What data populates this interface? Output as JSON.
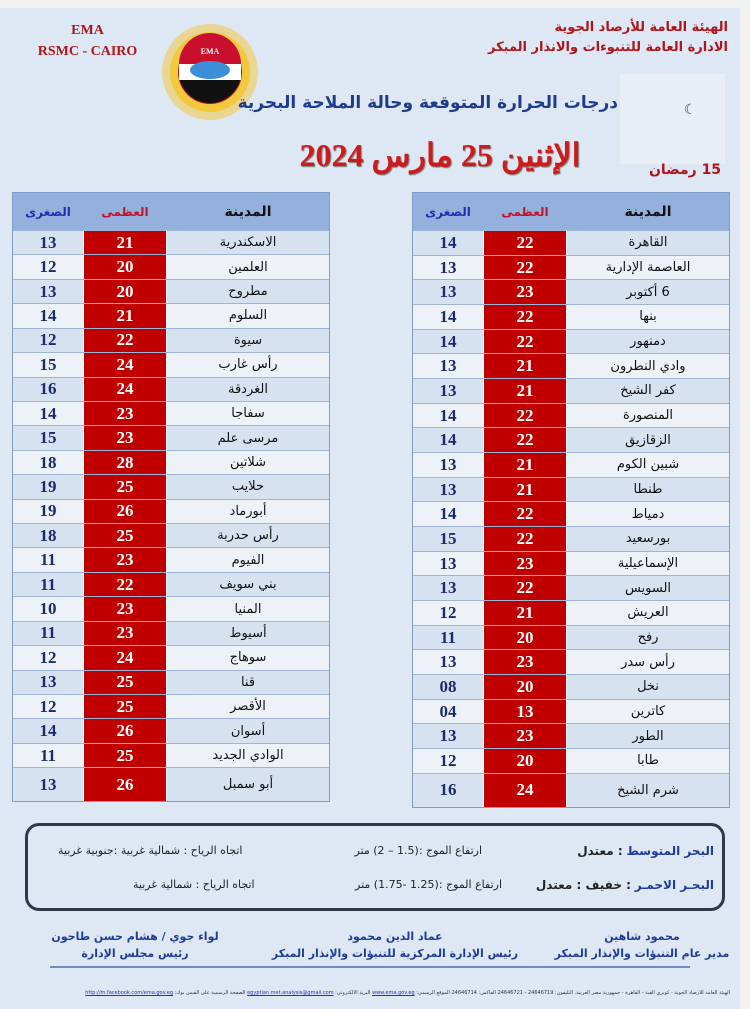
{
  "header": {
    "ema_lines": [
      "EMA",
      "RSMC - CAIRO"
    ],
    "org_lines": [
      "الهيئة العامة للأرصاد الجوية",
      "الادارة العامة للتنبوءات والانذار المبكر"
    ],
    "title": "درجات الحرارة المتوقعة وحالة الملاحة البحرية",
    "date": "الإثنين 25 مارس 2024",
    "ramadan_day": "15 رمضان",
    "logo_text": "EMA",
    "colors": {
      "accent_red": "#c00000",
      "title_blue": "#1f3b8c",
      "background": "#dde8f4"
    }
  },
  "table_headers": {
    "city": "المدينة",
    "max": "العظمى",
    "min": "الصغرى"
  },
  "right_table": [
    {
      "city": "القاهرة",
      "max": "22",
      "min": "14"
    },
    {
      "city": "العاصمة الإدارية",
      "max": "22",
      "min": "13"
    },
    {
      "city": "6 أكتوبر",
      "max": "23",
      "min": "13"
    },
    {
      "city": "بنها",
      "max": "22",
      "min": "14"
    },
    {
      "city": "دمنهور",
      "max": "22",
      "min": "14"
    },
    {
      "city": "وادي النطرون",
      "max": "21",
      "min": "13"
    },
    {
      "city": "كفر الشيخ",
      "max": "21",
      "min": "13"
    },
    {
      "city": "المنصورة",
      "max": "22",
      "min": "14"
    },
    {
      "city": "الزقازيق",
      "max": "22",
      "min": "14"
    },
    {
      "city": "شبين الكوم",
      "max": "21",
      "min": "13"
    },
    {
      "city": "طنطا",
      "max": "21",
      "min": "13"
    },
    {
      "city": "دمياط",
      "max": "22",
      "min": "14"
    },
    {
      "city": "بورسعيد",
      "max": "22",
      "min": "15"
    },
    {
      "city": "الإسماعيلية",
      "max": "23",
      "min": "13"
    },
    {
      "city": "السويس",
      "max": "22",
      "min": "13"
    },
    {
      "city": "العريش",
      "max": "21",
      "min": "12"
    },
    {
      "city": "رفح",
      "max": "20",
      "min": "11"
    },
    {
      "city": "رأس سدر",
      "max": "23",
      "min": "13"
    },
    {
      "city": "نخل",
      "max": "20",
      "min": "08"
    },
    {
      "city": "كاترين",
      "max": "13",
      "min": "04"
    },
    {
      "city": "الطور",
      "max": "23",
      "min": "13"
    },
    {
      "city": "طابا",
      "max": "20",
      "min": "12"
    },
    {
      "city": "شرم الشيخ",
      "max": "24",
      "min": "16"
    }
  ],
  "left_table": [
    {
      "city": "الاسكندرية",
      "max": "21",
      "min": "13"
    },
    {
      "city": "العلمين",
      "max": "20",
      "min": "12"
    },
    {
      "city": "مطروح",
      "max": "20",
      "min": "13"
    },
    {
      "city": "السلوم",
      "max": "21",
      "min": "14"
    },
    {
      "city": "سيوة",
      "max": "22",
      "min": "12"
    },
    {
      "city": "رأس غارب",
      "max": "24",
      "min": "15"
    },
    {
      "city": "الغردقة",
      "max": "24",
      "min": "16"
    },
    {
      "city": "سفاجا",
      "max": "23",
      "min": "14"
    },
    {
      "city": "مرسى علم",
      "max": "23",
      "min": "15"
    },
    {
      "city": "شلاتين",
      "max": "28",
      "min": "18"
    },
    {
      "city": "حلايب",
      "max": "25",
      "min": "19"
    },
    {
      "city": "أبورماد",
      "max": "26",
      "min": "19"
    },
    {
      "city": "رأس حدربة",
      "max": "25",
      "min": "18"
    },
    {
      "city": "الفيوم",
      "max": "23",
      "min": "11"
    },
    {
      "city": "بني سويف",
      "max": "22",
      "min": "11"
    },
    {
      "city": "المنيا",
      "max": "23",
      "min": "10"
    },
    {
      "city": "أسيوط",
      "max": "23",
      "min": "11"
    },
    {
      "city": "سوهاج",
      "max": "24",
      "min": "12"
    },
    {
      "city": "قنا",
      "max": "25",
      "min": "13"
    },
    {
      "city": "الأقصر",
      "max": "25",
      "min": "12"
    },
    {
      "city": "أسوان",
      "max": "26",
      "min": "14"
    },
    {
      "city": "الوادي الجديد",
      "max": "25",
      "min": "11"
    },
    {
      "city": "أبو سمبل",
      "max": "26",
      "min": "13"
    }
  ],
  "sea": {
    "mediterranean": {
      "name": "البحر المتوسط",
      "state": ": معتدل",
      "waves": "ارتفاع الموج :(1.5 – 2) متر",
      "wind": "اتجاه الرياح : شمالية غربية :جنوبية غربية"
    },
    "red_sea": {
      "name": "البحـر الاحمـر",
      "state": ":  خفيف : معتدل",
      "waves": "ارتفاع الموج :(1.25 -1.75) متر",
      "wind": "اتجاه الرياح : شمالية غربية"
    }
  },
  "signatures": [
    {
      "name": "محمود شاهين",
      "title": "مدير عام التنبؤات والإنذار المبكر"
    },
    {
      "name": "عماد الدين محمود",
      "title": "رئيس الإدارة المركزية للتنبؤات والإنذار المبكر"
    },
    {
      "name": "لواء جوي / هشام حسن طاحون",
      "title": "رئيس مجلس الإدارة"
    }
  ],
  "footer": {
    "text": "الهيئة العامة للأرصاد الجوية - كوبري القبة - القاهرة - جمهورية مصر العربية. التليفون: 24646719 - 24646721 الفاكس: 24646714 الموقع الرسمي:",
    "website": "www.ema.gov.eg",
    "email_label": "البريد الالكتروني:",
    "email": "egyptian.met.analysis@gmail.com",
    "fb_label": "الصفحة الرسمية على الفيس بوك:",
    "facebook": "http://m.facebook.com/ema.gov.eg"
  }
}
